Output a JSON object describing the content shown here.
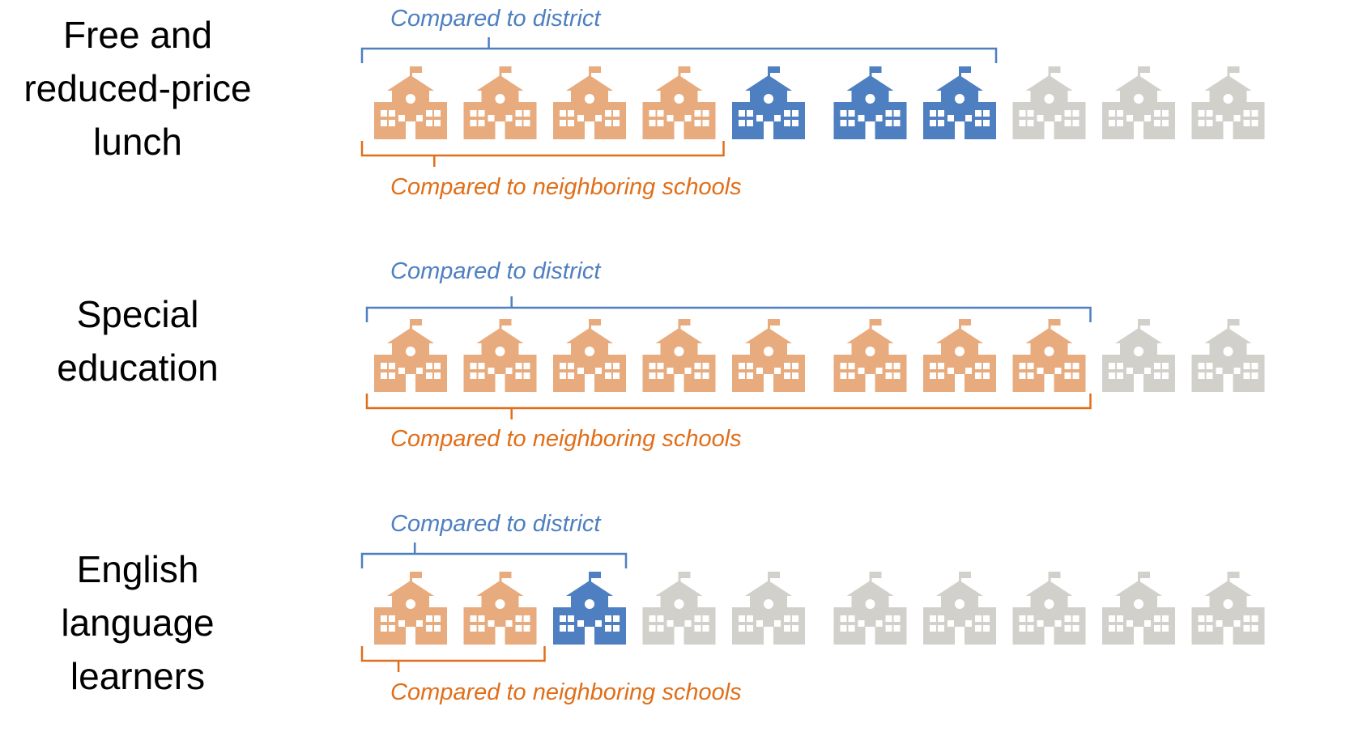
{
  "chart_data": {
    "type": "pictogram",
    "total": 10,
    "colors": {
      "neighboring": "#e8ab7e",
      "district": "#4e7fc0",
      "rest": "#d1d0cb",
      "district_text": "#4e7fc0",
      "neighboring_text": "#e06f1a"
    },
    "rows": [
      {
        "label_lines": [
          "Free and",
          "reduced-price",
          "lunch"
        ],
        "district_label": "Compared to district",
        "neighboring_label": "Compared to neighboring schools",
        "district": 7,
        "neighboring": 4
      },
      {
        "label_lines": [
          "Special",
          "education"
        ],
        "district_label": "Compared to district",
        "neighboring_label": "Compared to neighboring schools",
        "district": 8,
        "neighboring": 8
      },
      {
        "label_lines": [
          "English",
          "language",
          "learners"
        ],
        "district_label": "Compared to district",
        "neighboring_label": "Compared to neighboring schools",
        "district": 3,
        "neighboring": 2
      }
    ]
  }
}
